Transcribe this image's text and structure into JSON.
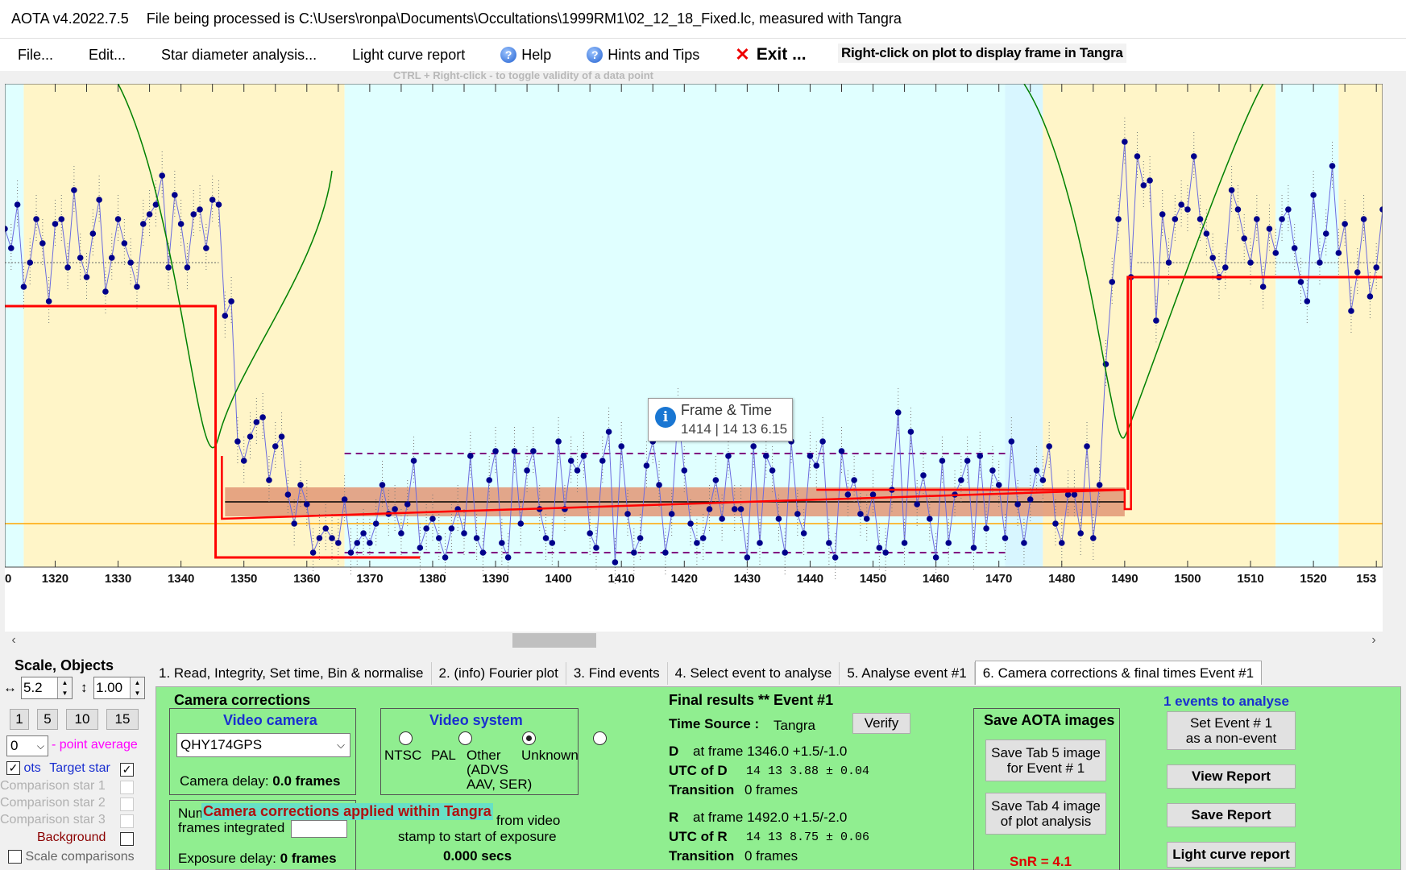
{
  "window": {
    "version": "AOTA v4.2022.7.5",
    "status": "File being processed is C:\\Users\\ronpa\\Documents\\Occultations\\1999RM1\\02_12_18_Fixed.lc, measured with Tangra"
  },
  "menu": {
    "file": "File...",
    "edit": "Edit...",
    "star_diameter": "Star diameter analysis...",
    "light_curve_report": "Light curve report",
    "help": "Help",
    "hints": "Hints and Tips",
    "exit": "Exit ...",
    "right_click_hint": "Right-click on plot to display frame in Tangra",
    "ctrl_hint": "CTRL + Right-click  -  to toggle validity of a data point"
  },
  "chart_data": {
    "type": "line",
    "x_ticks": [
      "0",
      "1320",
      "1330",
      "1340",
      "1350",
      "1360",
      "1370",
      "1380",
      "1390",
      "1400",
      "1410",
      "1420",
      "1430",
      "1440",
      "1450",
      "1460",
      "1470",
      "1480",
      "1490",
      "1500",
      "1510",
      "1520",
      "153"
    ],
    "xlim": [
      1312,
      1531
    ],
    "x_start_frame": 1312,
    "ylim": [
      0,
      1
    ],
    "values": [
      0.7,
      0.66,
      0.75,
      0.58,
      0.63,
      0.72,
      0.67,
      0.55,
      0.71,
      0.72,
      0.62,
      0.78,
      0.64,
      0.6,
      0.69,
      0.76,
      0.57,
      0.64,
      0.72,
      0.67,
      0.63,
      0.58,
      0.71,
      0.73,
      0.75,
      0.81,
      0.62,
      0.77,
      0.71,
      0.62,
      0.73,
      0.74,
      0.66,
      0.76,
      0.75,
      0.52,
      0.55,
      0.26,
      0.22,
      0.27,
      0.3,
      0.31,
      0.18,
      0.25,
      0.27,
      0.15,
      0.09,
      0.17,
      0.13,
      0.03,
      0.06,
      0.08,
      0.06,
      0.05,
      0.14,
      0.03,
      0.05,
      0.07,
      0.05,
      0.09,
      0.17,
      0.11,
      0.12,
      0.07,
      0.13,
      0.22,
      0.04,
      0.08,
      0.1,
      0.06,
      0.02,
      0.08,
      0.12,
      0.07,
      0.23,
      0.06,
      0.03,
      0.18,
      0.24,
      0.05,
      0.02,
      0.24,
      0.09,
      0.2,
      0.24,
      0.12,
      0.06,
      0.05,
      0.26,
      0.12,
      0.22,
      0.2,
      0.23,
      0.07,
      0.04,
      0.22,
      0.28,
      0.01,
      0.25,
      0.11,
      0.03,
      0.06,
      0.21,
      0.26,
      0.17,
      0.03,
      0.11,
      0.32,
      0.2,
      0.09,
      0.05,
      0.06,
      0.12,
      0.18,
      0.1,
      0.23,
      0.12,
      0.12,
      0.02,
      0.25,
      0.05,
      0.23,
      0.2,
      0.1,
      0.03,
      0.26,
      0.11,
      0.07,
      0.23,
      0.21,
      0.26,
      0.05,
      0.02,
      0.24,
      0.15,
      0.18,
      0.11,
      0.1,
      0.15,
      0.04,
      0.03,
      0.16,
      0.32,
      0.05,
      0.28,
      0.13,
      0.19,
      0.1,
      0.02,
      0.22,
      0.05,
      0.15,
      0.18,
      0.22,
      0.04,
      0.23,
      0.08,
      0.2,
      0.17,
      0.06,
      0.26,
      0.13,
      0.05,
      0.14,
      0.2,
      0.18,
      0.25,
      0.09,
      0.05,
      0.15,
      0.15,
      0.07,
      0.25,
      0.06,
      0.17,
      0.42,
      0.59,
      0.72,
      0.88,
      0.6,
      0.85,
      0.79,
      0.8,
      0.51,
      0.73,
      0.63,
      0.72,
      0.75,
      0.74,
      0.85,
      0.72,
      0.69,
      0.64,
      0.6,
      0.62,
      0.78,
      0.74,
      0.68,
      0.63,
      0.72,
      0.58,
      0.7,
      0.65,
      0.72,
      0.74,
      0.66,
      0.59,
      0.55,
      0.77,
      0.63,
      0.69,
      0.83,
      0.65,
      0.71,
      0.53,
      0.61,
      0.72,
      0.56,
      0.62,
      0.74,
      0.69,
      0.6,
      0.66,
      0.72,
      0.64,
      0.7,
      0.58
    ],
    "model_baseline": 0.54,
    "model_bottom": 0.1,
    "D_frame": 1346.0,
    "R_frame": 1492.0,
    "colors": {
      "points": "#00008b",
      "model": "#ff0000",
      "fit": "#008000",
      "band": "#e29776",
      "cyan_zone": "#e0ffff",
      "yellow_zone": "#fff5c8",
      "limit": "#ffa500",
      "dashed": "#800080"
    }
  },
  "tooltip": {
    "title": "Frame & Time",
    "value": "1414 | 14 13  6.15"
  },
  "scale_panel": {
    "title": "Scale,  Objects",
    "h_scale": "5.2",
    "v_scale": "1.00",
    "buttons": [
      "1",
      "5",
      "10",
      "15"
    ],
    "avg_value": "0",
    "avg_label": "- point average",
    "target_prefix": "ots",
    "target_label": "Target star",
    "comp1": "Comparison star 1",
    "comp2": "Comparison star 2",
    "comp3": "Comparison star 3",
    "background": "Background",
    "scale_comparisons": "Scale comparisons"
  },
  "tabs": [
    "1.  Read, Integrity, Set time, Bin & normalise",
    "2. (info)  Fourier plot",
    "3. Find events",
    "4. Select event to analyse",
    "5. Analyse event #1",
    "6. Camera corrections & final times Event #1"
  ],
  "camera": {
    "title": "Camera corrections",
    "video_camera_title": "Video camera",
    "camera_model": "QHY174GPS",
    "camera_delay_label": "Camera delay:",
    "camera_delay_value": "0.0 frames",
    "video_system_title": "Video system",
    "ntsc": "NTSC",
    "pal": "PAL",
    "other": "Other",
    "other_detail_1": "(ADVS",
    "other_detail_2": "AAV, SER)",
    "unknown": "Unknown",
    "frames_integrated_1": "Num",
    "frames_integrated_2": "frames integrated",
    "from_video": "from video",
    "stamp_to_start": "stamp to start of exposure",
    "offset_value": "0.000 secs",
    "exposure_delay_label": "Exposure delay:",
    "exposure_delay_value": "0 frames",
    "applied_banner": "Camera corrections applied within Tangra"
  },
  "final_results": {
    "title": "Final results   **   Event #1",
    "time_source_label": "Time Source :",
    "time_source": "Tangra",
    "verify": "Verify",
    "d_label": "D",
    "d_frame": "at frame 1346.0  +1.5/-1.0",
    "utc_d_label": "UTC of D",
    "utc_d": "14 13   3.88  ± 0.04",
    "transition_label": "Transition",
    "d_transition": "0 frames",
    "r_label": "R",
    "r_frame": "at frame 1492.0  +1.5/-2.0",
    "utc_r_label": "UTC of R",
    "utc_r": "14 13   8.75  ± 0.06",
    "r_transition": "0 frames"
  },
  "save_images": {
    "title": "Save AOTA images",
    "tab5_1": "Save Tab 5 image",
    "tab5_2": "for Event # 1",
    "tab4_1": "Save Tab 4 image",
    "tab4_2": "of plot analysis",
    "snr": "SnR = 4.1"
  },
  "actions": {
    "events_to_analyse": "1  events to analyse",
    "set_event_1": "Set Event # 1",
    "set_event_2": "as a non-event",
    "view_report": "View Report",
    "save_report": "Save Report",
    "light_curve_report": "Light curve report"
  }
}
